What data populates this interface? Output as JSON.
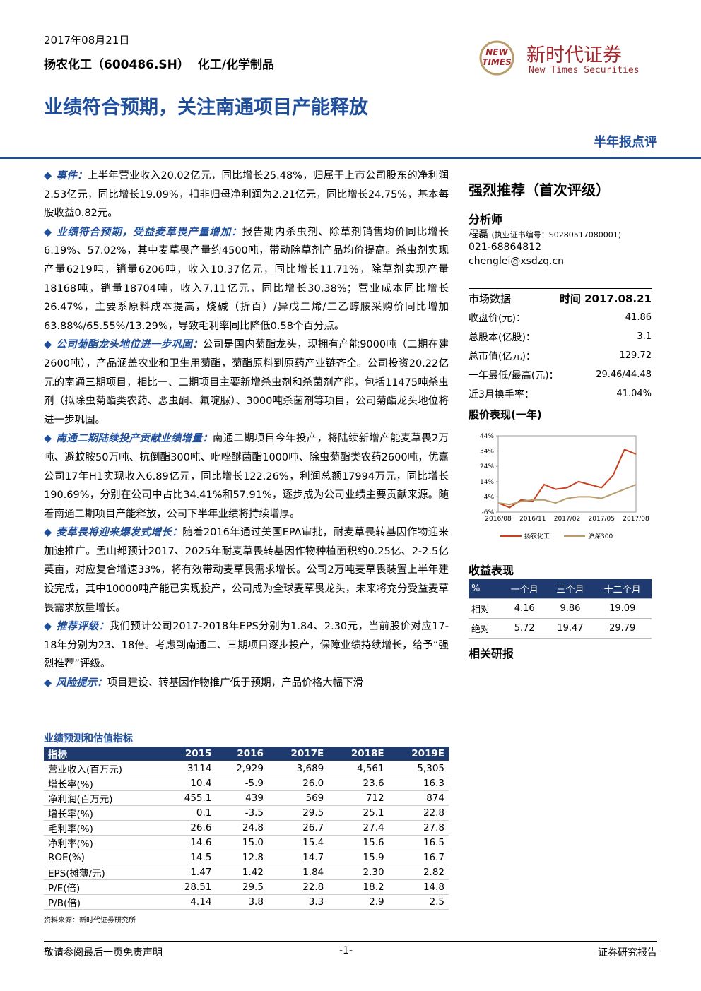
{
  "header": {
    "date": "2017年08月21日",
    "company": "扬农化工（600486.SH）",
    "industry": "化工/化学制品",
    "title": "业绩符合预期，关注南通项目产能释放",
    "report_type": "半年报点评",
    "logo_mark_1": "NEW",
    "logo_mark_2": "TIMES",
    "logo_cn": "新时代证券",
    "logo_en": "New Times Securities"
  },
  "paragraphs": [
    {
      "heading": "事件：",
      "text": "上半年营业收入20.02亿元，同比增长25.48%，归属于上市公司股东的净利润2.53亿元，同比增长19.09%，扣非归母净利润为2.21亿元，同比增长24.75%，基本每股收益0.82元。"
    },
    {
      "heading": "业绩符合预期，受益麦草畏产量增加：",
      "text": "报告期内杀虫剂、除草剂销售均价同比增长6.19%、57.02%，其中麦草畏产量约4500吨，带动除草剂产品均价提高。杀虫剂实现产量6219吨，销量6206吨，收入10.37亿元，同比增长11.71%，除草剂实现产量18168吨，销量18704吨，收入7.11亿元，同比增长30.38%；营业成本同比增长26.47%，主要系原料成本提高，烧碱（折百）/异戊二烯/二乙醇胺采购价同比增加63.88%/65.55%/13.29%，导致毛利率同比降低0.58个百分点。"
    },
    {
      "heading": "公司菊酯龙头地位进一步巩固：",
      "text": "公司是国内菊酯龙头，现拥有产能9000吨（二期在建2600吨），产品涵盖农业和卫生用菊酯，菊酯原料到原药产业链齐全。公司投资20.22亿元的南通三期项目，相比一、二期项目主要新增杀虫剂和杀菌剂产能，包括11475吨杀虫剂（拟除虫菊酯类农药、恶虫酮、氟啶脲）、3000吨杀菌剂等项目，公司菊酯龙头地位将进一步巩固。"
    },
    {
      "heading": "南通二期陆续投产贡献业绩增量：",
      "text": "南通二期项目今年投产，将陆续新增产能麦草畏2万吨、避蚊胺50万吨、抗倒酯300吨、吡唑醚菌酯1000吨、除虫菊酯类农药2600吨，优嘉公司17年H1实现收入6.89亿元，同比增长122.26%，利润总额17994万元，同比增长190.69%，分别在公司中占比34.41%和57.91%，逐步成为公司业绩主要贡献来源。随着南通二期项目产能释放，公司下半年业绩将持续增厚。"
    },
    {
      "heading": "麦草畏将迎来爆发式增长：",
      "text": "随着2016年通过美国EPA审批，耐麦草畏转基因作物迎来加速推广。孟山都预计2017、2025年耐麦草畏转基因作物种植面积约0.25亿、2-2.5亿英亩，对应复合增速33%，将有效带动麦草畏需求增长。公司2万吨麦草畏装置上半年建设完成，其中10000吨产能已实现投产，公司成为全球麦草畏龙头，未来将充分受益麦草畏需求放量增长。"
    },
    {
      "heading": "推荐评级：",
      "text": "我们预计公司2017-2018年EPS分别为1.84、2.30元，当前股价对应17-18年分别为23、18倍。考虑到南通二、三期项目逐步投产，保障业绩持续增长，给予“强烈推荐”评级。"
    },
    {
      "heading": "风险提示：",
      "text": "项目建设、转基因作物推广低于预期，产品价格大幅下滑"
    }
  ],
  "sidebar": {
    "rating": "强烈推荐（首次评级）",
    "analyst_heading": "分析师",
    "analyst_name": "程磊",
    "analyst_cert": "(执业证书编号：S0280517080001)",
    "phone": "021-68864812",
    "email": "chenglei@xsdzq.cn",
    "market_heading": "市场数据",
    "market_time": "时间 2017.08.21",
    "market_rows": [
      [
        "收盘价(元)：",
        "41.86"
      ],
      [
        "总股本(亿股)：",
        "3.1"
      ],
      [
        "总市值(亿元)：",
        "129.72"
      ],
      [
        "一年最低/最高(元)：",
        "29.46/44.48"
      ],
      [
        "近3月换手率：",
        "41.04%"
      ]
    ],
    "income_heading": "收益表现",
    "income_header": [
      "%",
      "一个月",
      "三个月",
      "十二个月"
    ],
    "income_rows": [
      [
        "相对",
        "4.16",
        "9.86",
        "19.09"
      ],
      [
        "绝对",
        "5.72",
        "19.47",
        "29.79"
      ]
    ],
    "related_heading": "相关研报"
  },
  "chart_data": {
    "type": "line",
    "title": "股价表现(一年)",
    "categories": [
      "2016/08",
      null,
      null,
      "2016/11",
      null,
      null,
      "2017/02",
      null,
      null,
      "2017/05",
      null,
      null,
      "2017/08"
    ],
    "series": [
      {
        "name": "扬农化工",
        "color": "#c8401e",
        "values": [
          0,
          -3,
          2,
          1,
          12,
          9,
          10,
          14,
          12,
          10,
          18,
          35,
          32
        ]
      },
      {
        "name": "沪深300",
        "color": "#b89c6a",
        "values": [
          0,
          -1,
          1,
          2,
          2,
          0,
          3,
          4,
          4,
          3,
          6,
          9,
          12
        ]
      }
    ],
    "ylim": [
      -6,
      44
    ],
    "yticks": [
      {
        "value": 44,
        "label": "44%"
      },
      {
        "value": 34,
        "label": "34%"
      },
      {
        "value": 24,
        "label": "24%"
      },
      {
        "value": 14,
        "label": "14%"
      },
      {
        "value": 4,
        "label": "4%"
      },
      {
        "value": -6,
        "label": "-6%"
      }
    ]
  },
  "forecast": {
    "title": "业绩预测和估值指标",
    "header": [
      "指标",
      "2015",
      "2016",
      "2017E",
      "2018E",
      "2019E"
    ],
    "rows": [
      [
        "营业收入(百万元)",
        "3114",
        "2,929",
        "3,689",
        "4,561",
        "5,305"
      ],
      [
        "增长率(%)",
        "10.4",
        "-5.9",
        "26.0",
        "23.6",
        "16.3"
      ],
      [
        "净利润(百万元)",
        "455.1",
        "439",
        "569",
        "712",
        "874"
      ],
      [
        "增长率(%)",
        "0.1",
        "-3.5",
        "29.5",
        "25.1",
        "22.8"
      ],
      [
        "毛利率(%)",
        "26.6",
        "24.8",
        "26.7",
        "27.4",
        "27.8"
      ],
      [
        "净利率(%)",
        "14.6",
        "15.0",
        "15.4",
        "15.6",
        "16.5"
      ],
      [
        "ROE(%)",
        "14.5",
        "12.8",
        "14.7",
        "15.9",
        "16.7"
      ],
      [
        "EPS(摊薄/元)",
        "1.47",
        "1.42",
        "1.84",
        "2.30",
        "2.82"
      ],
      [
        "P/E(倍)",
        "28.51",
        "29.5",
        "22.8",
        "18.2",
        "14.8"
      ],
      [
        "P/B(倍)",
        "4.14",
        "3.8",
        "3.3",
        "2.9",
        "2.5"
      ]
    ],
    "source": "资料来源：新时代证券研究所"
  },
  "footer": {
    "left": "敬请参阅最后一页免责声明",
    "center": "-1-",
    "right": "证券研究报告"
  }
}
